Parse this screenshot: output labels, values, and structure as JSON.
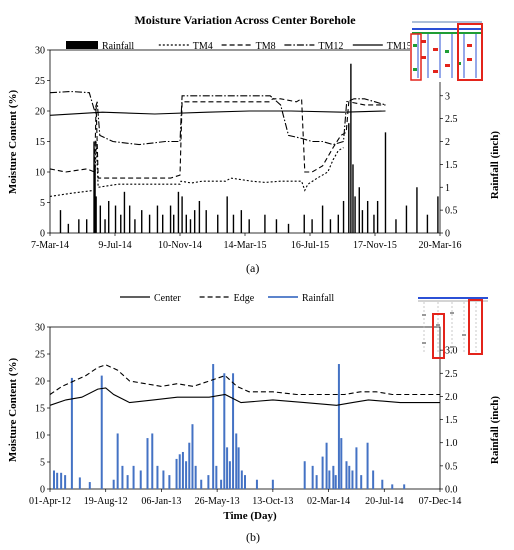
{
  "chart_data": [
    {
      "type": "line",
      "title": "Moisture Variation Across Center Borehole",
      "xlabel": "",
      "ylabel": "Moisture Content (%)",
      "y2label": "Rainfall (inch)",
      "ylim": [
        0,
        30
      ],
      "y2lim": [
        0,
        4
      ],
      "yticks": [
        0,
        5,
        10,
        15,
        20,
        25,
        30
      ],
      "y2ticks": [
        "0",
        "0.5",
        "1",
        "1.5",
        "2",
        "2.5",
        "3",
        "3.5"
      ],
      "x_categories": [
        "7-Mar-14",
        "9-Jul-14",
        "10-Nov-14",
        "14-Mar-15",
        "16-Jul-15",
        "17-Nov-15",
        "20-Mar-16"
      ],
      "x_range": [
        0,
        744
      ],
      "legend": [
        "Rainfall",
        "TM4",
        "TM8",
        "TM12",
        "TM15"
      ],
      "legend_position": "top",
      "series": [
        {
          "name": "TM4",
          "style": "dotted",
          "points": [
            [
              0,
              6
            ],
            [
              40,
              6.5
            ],
            [
              85,
              7
            ],
            [
              88,
              15
            ],
            [
              92,
              7.5
            ],
            [
              130,
              8
            ],
            [
              200,
              8
            ],
            [
              248,
              8
            ],
            [
              250,
              8.5
            ],
            [
              270,
              8.2
            ],
            [
              290,
              8.5
            ],
            [
              335,
              8.5
            ],
            [
              345,
              9
            ],
            [
              385,
              8.5
            ],
            [
              410,
              8.3
            ],
            [
              440,
              8.5
            ],
            [
              480,
              8.5
            ],
            [
              486,
              7
            ],
            [
              492,
              8
            ],
            [
              510,
              9
            ],
            [
              530,
              10
            ],
            [
              540,
              12
            ],
            [
              550,
              13.5
            ],
            [
              560,
              14
            ]
          ]
        },
        {
          "name": "TM8",
          "style": "dashed",
          "points": [
            [
              0,
              10.5
            ],
            [
              30,
              10
            ],
            [
              70,
              10.5
            ],
            [
              85,
              10
            ],
            [
              88,
              21
            ],
            [
              92,
              9
            ],
            [
              130,
              9
            ],
            [
              180,
              9
            ],
            [
              230,
              9
            ],
            [
              248,
              9.5
            ],
            [
              252,
              21.5
            ],
            [
              290,
              21.5
            ],
            [
              335,
              21.5
            ],
            [
              380,
              21.5
            ],
            [
              410,
              21.5
            ],
            [
              418,
              21.5
            ],
            [
              425,
              22
            ],
            [
              440,
              22
            ],
            [
              470,
              21.5
            ],
            [
              480,
              22
            ],
            [
              486,
              10
            ],
            [
              500,
              10
            ],
            [
              520,
              11
            ],
            [
              540,
              14
            ],
            [
              555,
              16
            ],
            [
              565,
              16.5
            ],
            [
              570,
              21.5
            ],
            [
              600,
              21
            ],
            [
              640,
              21
            ]
          ]
        },
        {
          "name": "TM12",
          "style": "dashdot",
          "points": [
            [
              0,
              23
            ],
            [
              40,
              23.2
            ],
            [
              75,
              23
            ],
            [
              85,
              20
            ],
            [
              90,
              21.5
            ],
            [
              95,
              16
            ],
            [
              120,
              15
            ],
            [
              170,
              14.5
            ],
            [
              220,
              15
            ],
            [
              248,
              15
            ],
            [
              252,
              22.5
            ],
            [
              300,
              22.5
            ],
            [
              380,
              22.5
            ],
            [
              410,
              22.5
            ],
            [
              420,
              22.5
            ],
            [
              440,
              21
            ],
            [
              455,
              16
            ],
            [
              480,
              15.5
            ],
            [
              500,
              15
            ],
            [
              520,
              15
            ],
            [
              540,
              14.5
            ],
            [
              560,
              15
            ],
            [
              566,
              21.5
            ],
            [
              580,
              22
            ],
            [
              600,
              22
            ],
            [
              620,
              21.5
            ],
            [
              640,
              21
            ]
          ]
        },
        {
          "name": "TM15",
          "style": "solid",
          "points": [
            [
              0,
              19.3
            ],
            [
              100,
              19.8
            ],
            [
              200,
              19.5
            ],
            [
              300,
              19.8
            ],
            [
              380,
              20
            ],
            [
              460,
              20
            ],
            [
              560,
              19.8
            ],
            [
              640,
              20
            ]
          ]
        }
      ],
      "rainfall_series": {
        "name": "Rainfall",
        "unit": "inch",
        "bars": [
          [
            20,
            0.5
          ],
          [
            35,
            0.2
          ],
          [
            55,
            0.3
          ],
          [
            70,
            0.3
          ],
          [
            84,
            2
          ],
          [
            86,
            1.5
          ],
          [
            88,
            0.8
          ],
          [
            96,
            0.6
          ],
          [
            105,
            0.3
          ],
          [
            112,
            0.7
          ],
          [
            125,
            0.6
          ],
          [
            135,
            0.4
          ],
          [
            142,
            0.9
          ],
          [
            152,
            0.6
          ],
          [
            162,
            0.3
          ],
          [
            175,
            0.5
          ],
          [
            190,
            0.4
          ],
          [
            205,
            0.6
          ],
          [
            215,
            0.4
          ],
          [
            230,
            0.6
          ],
          [
            236,
            0.4
          ],
          [
            245,
            0.9
          ],
          [
            252,
            0.8
          ],
          [
            260,
            0.4
          ],
          [
            268,
            0.3
          ],
          [
            276,
            0.5
          ],
          [
            285,
            0.7
          ],
          [
            298,
            0.5
          ],
          [
            320,
            0.4
          ],
          [
            338,
            0.8
          ],
          [
            350,
            0.4
          ],
          [
            365,
            0.5
          ],
          [
            380,
            0.3
          ],
          [
            410,
            0.4
          ],
          [
            432,
            0.3
          ],
          [
            455,
            0.2
          ],
          [
            485,
            0.4
          ],
          [
            500,
            0.3
          ],
          [
            520,
            0.6
          ],
          [
            535,
            0.3
          ],
          [
            550,
            0.4
          ],
          [
            560,
            0.7
          ],
          [
            570,
            2.4
          ],
          [
            574,
            3.7
          ],
          [
            578,
            1.5
          ],
          [
            582,
            0.8
          ],
          [
            590,
            1
          ],
          [
            596,
            0.5
          ],
          [
            606,
            0.7
          ],
          [
            618,
            0.4
          ],
          [
            625,
            0.7
          ],
          [
            640,
            2.2
          ],
          [
            660,
            0.3
          ],
          [
            680,
            0.6
          ],
          [
            700,
            1
          ],
          [
            720,
            0.4
          ],
          [
            740,
            0.8
          ]
        ]
      }
    },
    {
      "type": "line",
      "title": "",
      "xlabel": "Time (Day)",
      "ylabel": "Moisture Content (%)",
      "y2label": "Rainfall (inch)",
      "ylim": [
        0,
        30
      ],
      "y2lim": [
        0,
        3.5
      ],
      "yticks": [
        0,
        5,
        10,
        15,
        20,
        25,
        30
      ],
      "y2ticks": [
        "0.0",
        "0.5",
        "1.0",
        "1.5",
        "2.0",
        "2.5",
        "3.0"
      ],
      "x_categories": [
        "01-Apr-12",
        "19-Aug-12",
        "06-Jan-13",
        "26-May-13",
        "13-Oct-13",
        "02-Mar-14",
        "20-Jul-14",
        "07-Dec-14"
      ],
      "x_range": [
        0,
        980
      ],
      "legend": [
        "Center",
        "Edge",
        "Rainfall"
      ],
      "legend_position": "top",
      "series": [
        {
          "name": "Center",
          "style": "solid",
          "points": [
            [
              0,
              15.5
            ],
            [
              40,
              16.5
            ],
            [
              80,
              17
            ],
            [
              120,
              18.5
            ],
            [
              140,
              18.7
            ],
            [
              160,
              17.5
            ],
            [
              200,
              16
            ],
            [
              260,
              16.5
            ],
            [
              320,
              17
            ],
            [
              400,
              17
            ],
            [
              440,
              17.5
            ],
            [
              480,
              16
            ],
            [
              560,
              16.5
            ],
            [
              640,
              16
            ],
            [
              720,
              15.5
            ],
            [
              760,
              16
            ],
            [
              800,
              16.5
            ],
            [
              880,
              16
            ],
            [
              940,
              16
            ],
            [
              980,
              16
            ]
          ]
        },
        {
          "name": "Edge",
          "style": "dashed",
          "points": [
            [
              0,
              17.5
            ],
            [
              30,
              19
            ],
            [
              60,
              20
            ],
            [
              90,
              21
            ],
            [
              120,
              22.5
            ],
            [
              140,
              23
            ],
            [
              170,
              22
            ],
            [
              200,
              20
            ],
            [
              240,
              19.5
            ],
            [
              280,
              19
            ],
            [
              320,
              19.5
            ],
            [
              360,
              19
            ],
            [
              400,
              20
            ],
            [
              440,
              21
            ],
            [
              470,
              19
            ],
            [
              500,
              18
            ],
            [
              560,
              18
            ],
            [
              620,
              17.5
            ],
            [
              680,
              17.5
            ],
            [
              740,
              17.5
            ],
            [
              780,
              18
            ],
            [
              820,
              18
            ],
            [
              860,
              17.5
            ],
            [
              920,
              17.5
            ],
            [
              980,
              17.5
            ]
          ]
        }
      ],
      "rainfall_series": {
        "name": "Rainfall",
        "unit": "inch",
        "bars": [
          [
            10,
            0.4
          ],
          [
            18,
            0.35
          ],
          [
            28,
            0.35
          ],
          [
            38,
            0.3
          ],
          [
            55,
            2.4
          ],
          [
            75,
            0.25
          ],
          [
            100,
            0.15
          ],
          [
            130,
            2.45
          ],
          [
            160,
            0.2
          ],
          [
            170,
            1.2
          ],
          [
            182,
            0.5
          ],
          [
            195,
            0.3
          ],
          [
            210,
            0.5
          ],
          [
            228,
            0.4
          ],
          [
            245,
            1.1
          ],
          [
            257,
            1.2
          ],
          [
            270,
            0.5
          ],
          [
            285,
            0.4
          ],
          [
            300,
            0.3
          ],
          [
            318,
            0.65
          ],
          [
            326,
            0.75
          ],
          [
            334,
            0.8
          ],
          [
            342,
            0.6
          ],
          [
            350,
            1
          ],
          [
            358,
            1.4
          ],
          [
            366,
            0.5
          ],
          [
            380,
            0.2
          ],
          [
            398,
            0.3
          ],
          [
            410,
            2.7
          ],
          [
            418,
            0.5
          ],
          [
            430,
            0.2
          ],
          [
            438,
            2.5
          ],
          [
            445,
            0.9
          ],
          [
            452,
            0.6
          ],
          [
            460,
            2.5
          ],
          [
            468,
            1.2
          ],
          [
            474,
            0.9
          ],
          [
            482,
            0.4
          ],
          [
            490,
            0.3
          ],
          [
            520,
            0.2
          ],
          [
            560,
            0.2
          ],
          [
            640,
            0.6
          ],
          [
            660,
            0.5
          ],
          [
            670,
            0.3
          ],
          [
            685,
            0.7
          ],
          [
            695,
            1
          ],
          [
            702,
            0.4
          ],
          [
            712,
            0.5
          ],
          [
            718,
            0.3
          ],
          [
            726,
            2.7
          ],
          [
            732,
            1.1
          ],
          [
            745,
            0.6
          ],
          [
            752,
            0.5
          ],
          [
            760,
            0.4
          ],
          [
            770,
            0.9
          ],
          [
            782,
            0.3
          ],
          [
            798,
            1
          ],
          [
            812,
            0.4
          ],
          [
            835,
            0.2
          ],
          [
            860,
            0.1
          ],
          [
            890,
            0.1
          ]
        ]
      }
    }
  ],
  "panels": {
    "a_label": "(a)",
    "b_label": "(b)"
  },
  "colors": {
    "ink": "#000000",
    "rain_blue": "#4472c4",
    "inset_red": "#e3241b",
    "inset_blue": "#2b50d6",
    "inset_green": "#1f9d35"
  },
  "insets": [
    "borehole-layout-schematic-a",
    "borehole-layout-schematic-b"
  ]
}
